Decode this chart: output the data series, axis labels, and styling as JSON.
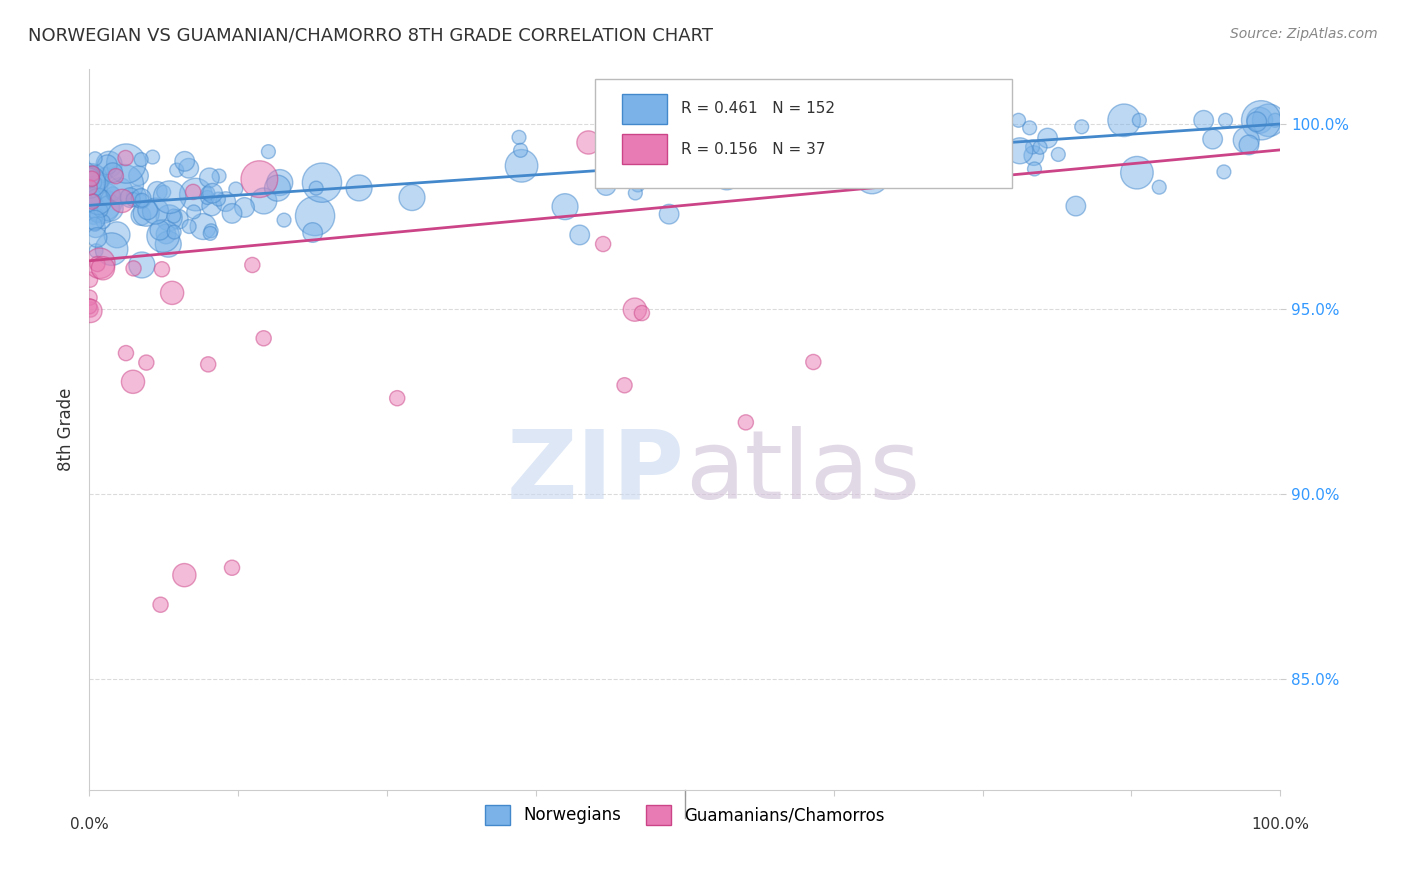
{
  "title": "NORWEGIAN VS GUAMANIAN/CHAMORRO 8TH GRADE CORRELATION CHART",
  "source": "Source: ZipAtlas.com",
  "ylabel": "8th Grade",
  "ytick_labels": [
    "85.0%",
    "90.0%",
    "95.0%",
    "100.0%"
  ],
  "ytick_values": [
    0.85,
    0.9,
    0.95,
    1.0
  ],
  "xlim": [
    0.0,
    1.0
  ],
  "ylim": [
    0.82,
    1.015
  ],
  "R_norwegian": 0.461,
  "N_norwegian": 152,
  "R_chamorro": 0.156,
  "N_chamorro": 37,
  "dot_color_norwegian": "#7bb3e8",
  "dot_color_chamorro": "#e87bb3",
  "line_color_norwegian": "#4488cc",
  "line_color_chamorro": "#cc4488",
  "bg_color": "#ffffff",
  "grid_color": "#cccccc",
  "title_color": "#333333",
  "watermark_color_zip": "#c8d8f0",
  "watermark_color_atlas": "#d0c0d8"
}
